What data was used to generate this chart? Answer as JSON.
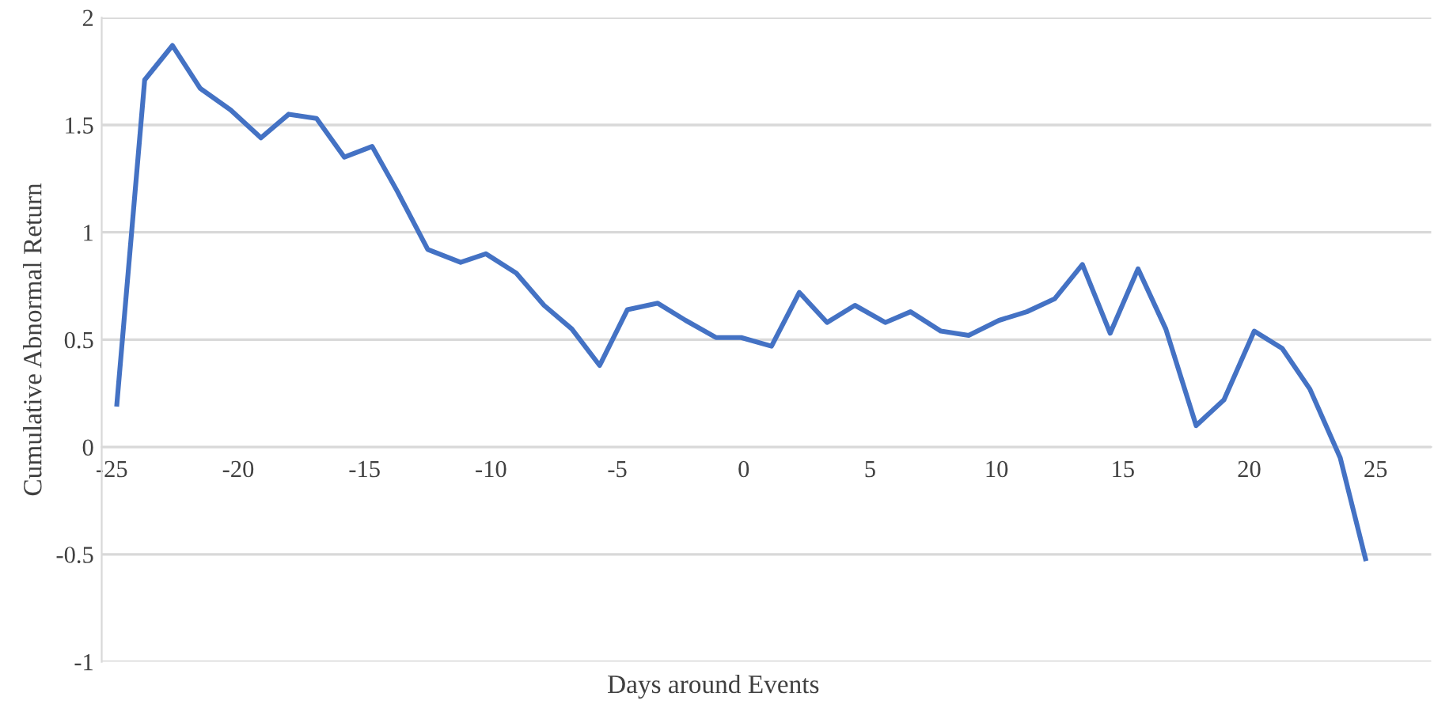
{
  "chart_data": {
    "type": "line",
    "xlabel": "Days around Events",
    "ylabel": "Cumulative Abnormal Return",
    "x": [
      -24.8,
      -23.7,
      -22.6,
      -21.5,
      -20.3,
      -19.1,
      -18.0,
      -16.9,
      -15.8,
      -14.7,
      -13.7,
      -12.5,
      -11.2,
      -10.2,
      -9.0,
      -7.9,
      -6.8,
      -5.7,
      -4.6,
      -3.4,
      -2.3,
      -1.1,
      -0.1,
      1.1,
      2.2,
      3.3,
      4.4,
      5.6,
      6.6,
      7.8,
      8.9,
      10.1,
      11.2,
      12.3,
      13.4,
      14.5,
      15.6,
      16.7,
      17.9,
      19.0,
      20.2,
      21.3,
      22.4,
      23.6,
      24.6
    ],
    "series": [
      {
        "color": "#4472c4",
        "values": [
          0.2,
          1.71,
          1.87,
          1.67,
          1.57,
          1.44,
          1.55,
          1.53,
          1.35,
          1.4,
          1.19,
          0.92,
          0.86,
          0.9,
          0.81,
          0.66,
          0.55,
          0.38,
          0.64,
          0.67,
          0.59,
          0.51,
          0.51,
          0.47,
          0.72,
          0.58,
          0.66,
          0.58,
          0.63,
          0.54,
          0.52,
          0.59,
          0.63,
          0.69,
          0.85,
          0.53,
          0.83,
          0.55,
          0.1,
          0.22,
          0.54,
          0.46,
          0.27,
          -0.05,
          -0.52
        ]
      }
    ],
    "xlim": [
      -25.4,
      27.2
    ],
    "xticks": [
      -25,
      -20,
      -15,
      -10,
      -5,
      0,
      5,
      10,
      15,
      20,
      25
    ],
    "ylim": [
      -1,
      2
    ],
    "yticks": [
      -1,
      -0.5,
      0,
      0.5,
      1,
      1.5,
      2
    ],
    "grid": "y",
    "legend": false,
    "marker": "none",
    "line_style": "solid"
  }
}
